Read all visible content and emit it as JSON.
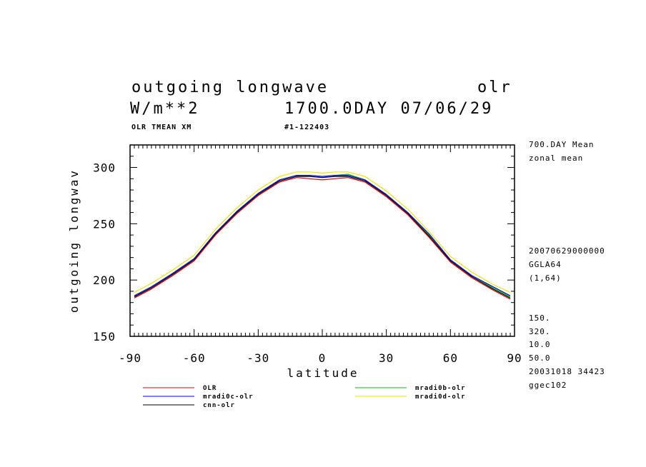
{
  "header": {
    "title_left": "outgoing longwave",
    "title_right": "olr",
    "units": "W/m**2",
    "run_info": "1700.0DAY 07/06/29",
    "sub_left": "OLR TMEAN XM",
    "sub_mid": "#1-122403"
  },
  "side_info": {
    "line1": "700.DAY Mean",
    "line2": "zonal mean",
    "line3": "20070629000000",
    "line4": "GGLA64",
    "line5": "(1,64)",
    "line6": "150.",
    "line7": "320.",
    "line8": "10.0",
    "line9": "50.0",
    "line10": "20031018  34423",
    "line11": "ggec102"
  },
  "chart_data": {
    "type": "line",
    "title": "outgoing longwave",
    "xlabel": "latitude",
    "ylabel": "outgoing longwav",
    "xlim": [
      -90,
      90
    ],
    "ylim": [
      150,
      320
    ],
    "xticks": [
      -90,
      -60,
      -30,
      0,
      30,
      60,
      90
    ],
    "yticks": [
      150,
      200,
      250,
      300
    ],
    "x": [
      -88,
      -80,
      -70,
      -60,
      -50,
      -40,
      -30,
      -20,
      -12,
      -6,
      0,
      6,
      12,
      20,
      30,
      40,
      50,
      60,
      70,
      80,
      88
    ],
    "series": [
      {
        "name": "OLR",
        "color": "#e00000",
        "values": [
          184,
          192,
          204,
          217,
          240,
          259,
          275,
          287,
          291,
          290,
          289,
          290,
          291,
          287,
          274,
          258,
          238,
          216,
          202,
          191,
          183
        ]
      },
      {
        "name": "mradi0b-olr",
        "color": "#00c000",
        "values": [
          186,
          194,
          206,
          219,
          242,
          261,
          277,
          289,
          293,
          293,
          292,
          293,
          294,
          289,
          276,
          260,
          240,
          218,
          204,
          193,
          185
        ]
      },
      {
        "name": "mradi0c-olr",
        "color": "#0000ff",
        "values": [
          186,
          194,
          206,
          219,
          242,
          261,
          277,
          289,
          293,
          293,
          292,
          293,
          293,
          289,
          276,
          260,
          241,
          218,
          204,
          194,
          186
        ]
      },
      {
        "name": "mradi0d-olr",
        "color": "#f0e000",
        "values": [
          189,
          197,
          209,
          222,
          245,
          264,
          280,
          292,
          296,
          296,
          295,
          296,
          296,
          292,
          279,
          263,
          243,
          221,
          207,
          196,
          189
        ]
      },
      {
        "name": "cnn-olr",
        "color": "#000000",
        "values": [
          185,
          193,
          205,
          218,
          241,
          260,
          276,
          288,
          292,
          292,
          291,
          292,
          292,
          288,
          275,
          259,
          239,
          217,
          203,
          192,
          184
        ]
      }
    ]
  }
}
